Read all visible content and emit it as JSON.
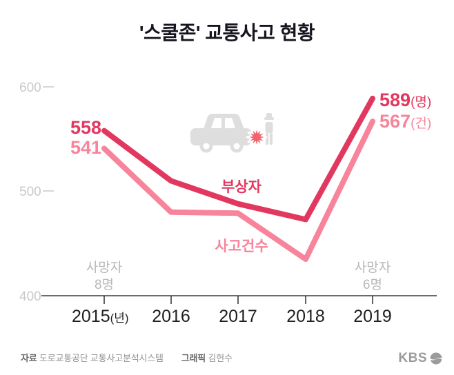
{
  "title": "'스쿨존' 교통사고 현황",
  "chart_data": {
    "type": "line",
    "title": "'스쿨존' 교통사고 현황",
    "categories": [
      "2015",
      "2016",
      "2017",
      "2018",
      "2019"
    ],
    "x_axis_suffix": "(년)",
    "series": [
      {
        "id": "injured",
        "name": "부상자",
        "color": "#e2385f",
        "unit_label": "(명)",
        "values": [
          558,
          510,
          488,
          473,
          589
        ]
      },
      {
        "id": "accidents",
        "name": "사고건수",
        "color": "#f8849c",
        "unit_label": "(건)",
        "values": [
          541,
          480,
          479,
          435,
          567
        ]
      }
    ],
    "yticks": [
      400,
      500,
      600
    ],
    "ylim": [
      400,
      620
    ],
    "grid": "off",
    "legend_position": "inline-on-lines",
    "annotations": [
      {
        "text": "사망자",
        "value": "8명",
        "at_category": "2015"
      },
      {
        "text": "사망자",
        "value": "6명",
        "at_category": "2019"
      }
    ]
  },
  "footer": {
    "source_label": "자료",
    "source": "도로교통공단 교통사고분석시스템",
    "credit_label": "그래픽",
    "credit": "김현수",
    "logo_text": "KBS"
  }
}
